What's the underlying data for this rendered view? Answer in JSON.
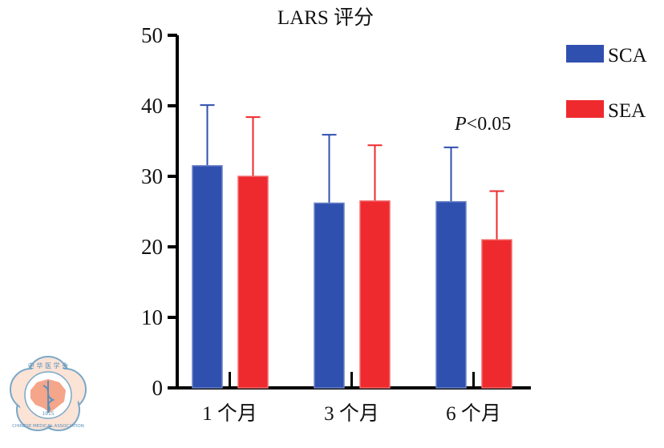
{
  "chart_data": {
    "type": "bar",
    "title": "LARS 评分",
    "xlabel": "",
    "ylabel": "",
    "ylim": [
      0,
      50
    ],
    "yticks": [
      0,
      10,
      20,
      30,
      40,
      50
    ],
    "categories": [
      "1 个月",
      "3 个月",
      "6 个月"
    ],
    "series": [
      {
        "name": "SCA",
        "color": "#3050b0",
        "values": [
          31.5,
          26.2,
          26.4
        ],
        "error_upper": [
          40.1,
          35.9,
          34.1
        ]
      },
      {
        "name": "SEA",
        "color": "#ee2a2e",
        "values": [
          30.0,
          26.5,
          21.0
        ],
        "error_upper": [
          38.4,
          34.4,
          27.9
        ]
      }
    ],
    "legend_position": "right",
    "annotation": {
      "italic": "P",
      "text": "<0.05"
    }
  },
  "watermark": {
    "top_text": "中 华 医 学 会",
    "bottom_text": "CHINESE MEDICAL ASSOCIATION",
    "year": "1915"
  }
}
